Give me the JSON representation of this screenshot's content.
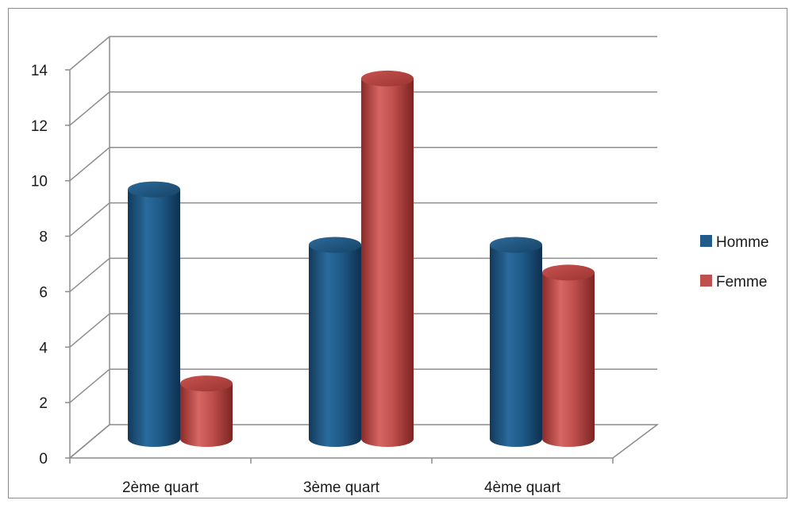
{
  "chart_data": {
    "type": "bar",
    "style": "3d-cylinder",
    "categories": [
      "2ème quart",
      "3ème quart",
      "4ème quart"
    ],
    "series": [
      {
        "name": "Homme",
        "values": [
          9,
          7,
          7
        ],
        "color": "#1f5c8b"
      },
      {
        "name": "Femme",
        "values": [
          2,
          13,
          6
        ],
        "color": "#c0504d"
      }
    ],
    "title": "",
    "xlabel": "",
    "ylabel": "",
    "ylim": [
      0,
      14
    ],
    "yticks": [
      "0",
      "2",
      "4",
      "6",
      "8",
      "10",
      "12",
      "14"
    ],
    "grid": true,
    "legend_position": "right"
  }
}
